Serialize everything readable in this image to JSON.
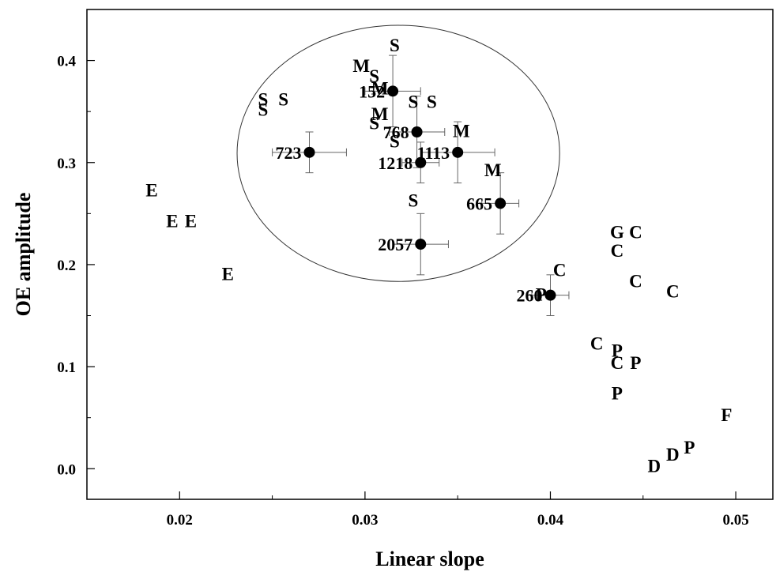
{
  "chart_data": {
    "type": "scatter",
    "xlabel": "Linear slope",
    "ylabel": "OE amplitude",
    "xlim": [
      0.015,
      0.052
    ],
    "ylim": [
      -0.03,
      0.45
    ],
    "grid": false,
    "xticks": [
      {
        "value": 0.02,
        "label": "0.02"
      },
      {
        "value": 0.03,
        "label": "0.03"
      },
      {
        "value": 0.04,
        "label": "0.04"
      },
      {
        "value": 0.05,
        "label": "0.05"
      }
    ],
    "yticks": [
      {
        "value": 0.0,
        "label": "0.0"
      },
      {
        "value": 0.1,
        "label": "0.1"
      },
      {
        "value": 0.2,
        "label": "0.2"
      },
      {
        "value": 0.3,
        "label": "0.3"
      },
      {
        "value": 0.4,
        "label": "0.4"
      }
    ],
    "points": [
      {
        "label": "723",
        "x": 0.027,
        "y": 0.31,
        "xerr": 0.002,
        "yerr": 0.02
      },
      {
        "label": "152",
        "x": 0.0315,
        "y": 0.37,
        "xerr": 0.0015,
        "yerr": 0.035
      },
      {
        "label": "768",
        "x": 0.0328,
        "y": 0.33,
        "xerr": 0.0015,
        "yerr": 0.035
      },
      {
        "label": "1113",
        "x": 0.035,
        "y": 0.31,
        "xerr": 0.002,
        "yerr": 0.03
      },
      {
        "label": "1218",
        "x": 0.033,
        "y": 0.3,
        "xerr": 0.001,
        "yerr": 0.02
      },
      {
        "label": "665",
        "x": 0.0373,
        "y": 0.26,
        "xerr": 0.001,
        "yerr": 0.03
      },
      {
        "label": "2057",
        "x": 0.033,
        "y": 0.22,
        "xerr": 0.0015,
        "yerr": 0.03
      },
      {
        "label": "260",
        "x": 0.04,
        "y": 0.17,
        "xerr": 0.001,
        "yerr": 0.02
      }
    ],
    "letters": [
      {
        "text": "S",
        "x": 0.0316,
        "y": 0.415
      },
      {
        "text": "M",
        "x": 0.0298,
        "y": 0.395
      },
      {
        "text": "S",
        "x": 0.0305,
        "y": 0.385
      },
      {
        "text": "M",
        "x": 0.0308,
        "y": 0.373
      },
      {
        "text": "S",
        "x": 0.0245,
        "y": 0.362
      },
      {
        "text": "S",
        "x": 0.0256,
        "y": 0.362
      },
      {
        "text": "S",
        "x": 0.0245,
        "y": 0.352
      },
      {
        "text": "S",
        "x": 0.0326,
        "y": 0.36
      },
      {
        "text": "S",
        "x": 0.0336,
        "y": 0.36
      },
      {
        "text": "M",
        "x": 0.0308,
        "y": 0.348
      },
      {
        "text": "S",
        "x": 0.0305,
        "y": 0.339
      },
      {
        "text": "M",
        "x": 0.0352,
        "y": 0.331
      },
      {
        "text": "S",
        "x": 0.0316,
        "y": 0.321
      },
      {
        "text": "M",
        "x": 0.0369,
        "y": 0.293
      },
      {
        "text": "S",
        "x": 0.0326,
        "y": 0.263
      },
      {
        "text": "E",
        "x": 0.0185,
        "y": 0.273
      },
      {
        "text": "E",
        "x": 0.0196,
        "y": 0.243
      },
      {
        "text": "E",
        "x": 0.0206,
        "y": 0.243
      },
      {
        "text": "E",
        "x": 0.0226,
        "y": 0.191
      },
      {
        "text": "G",
        "x": 0.0436,
        "y": 0.232
      },
      {
        "text": "C",
        "x": 0.0446,
        "y": 0.232
      },
      {
        "text": "C",
        "x": 0.0436,
        "y": 0.214
      },
      {
        "text": "C",
        "x": 0.0405,
        "y": 0.195
      },
      {
        "text": "C",
        "x": 0.0446,
        "y": 0.184
      },
      {
        "text": "C",
        "x": 0.0466,
        "y": 0.174
      },
      {
        "text": "P",
        "x": 0.0395,
        "y": 0.171
      },
      {
        "text": "C",
        "x": 0.0425,
        "y": 0.123
      },
      {
        "text": "P",
        "x": 0.0436,
        "y": 0.116
      },
      {
        "text": "C",
        "x": 0.0436,
        "y": 0.104
      },
      {
        "text": "P",
        "x": 0.0446,
        "y": 0.104
      },
      {
        "text": "P",
        "x": 0.0436,
        "y": 0.074
      },
      {
        "text": "F",
        "x": 0.0495,
        "y": 0.053
      },
      {
        "text": "P",
        "x": 0.0475,
        "y": 0.021
      },
      {
        "text": "D",
        "x": 0.0466,
        "y": 0.014
      },
      {
        "text": "D",
        "x": 0.0456,
        "y": 0.003
      }
    ],
    "ellipse": {
      "cx": 0.0318,
      "cy": 0.309,
      "rx": 0.0087,
      "ry": 0.1255
    }
  }
}
